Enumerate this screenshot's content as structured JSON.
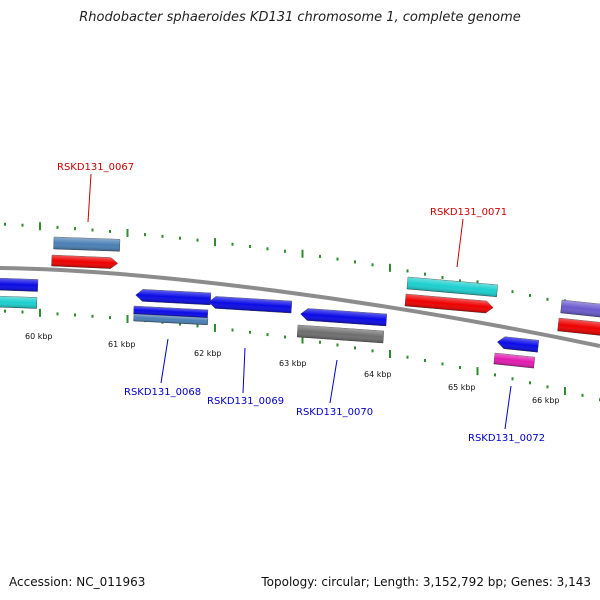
{
  "title": "Rhodobacter sphaeroides KD131 chromosome 1, complete genome",
  "footer": {
    "accession": "Accession: NC_011963",
    "stats": "Topology: circular; Length: 3,152,792 bp; Genes: 3,143"
  },
  "colors": {
    "backbone": "#8c8c8c",
    "ticks": "#2e8b2e",
    "label_forward": "#cc0000",
    "label_reverse": "#0000cc",
    "gene_blue": "#0a0ae6",
    "gene_cyan": "#1ccfcf",
    "gene_red": "#ee0000",
    "gene_steel": "#4a7fb5",
    "gene_gray": "#6e6e6e",
    "gene_magenta": "#e21ab0",
    "gene_purple": "#6a5acd"
  },
  "kbp_labels": [
    "60 kbp",
    "61 kbp",
    "62 kbp",
    "63 kbp",
    "64 kbp",
    "65 kbp",
    "66 kbp"
  ],
  "gene_labels": {
    "forward": [
      "RSKD131_0067",
      "RSKD131_0071"
    ],
    "reverse": [
      "RSKD131_0068",
      "RSKD131_0069",
      "RSKD131_0070",
      "RSKD131_0072"
    ]
  }
}
